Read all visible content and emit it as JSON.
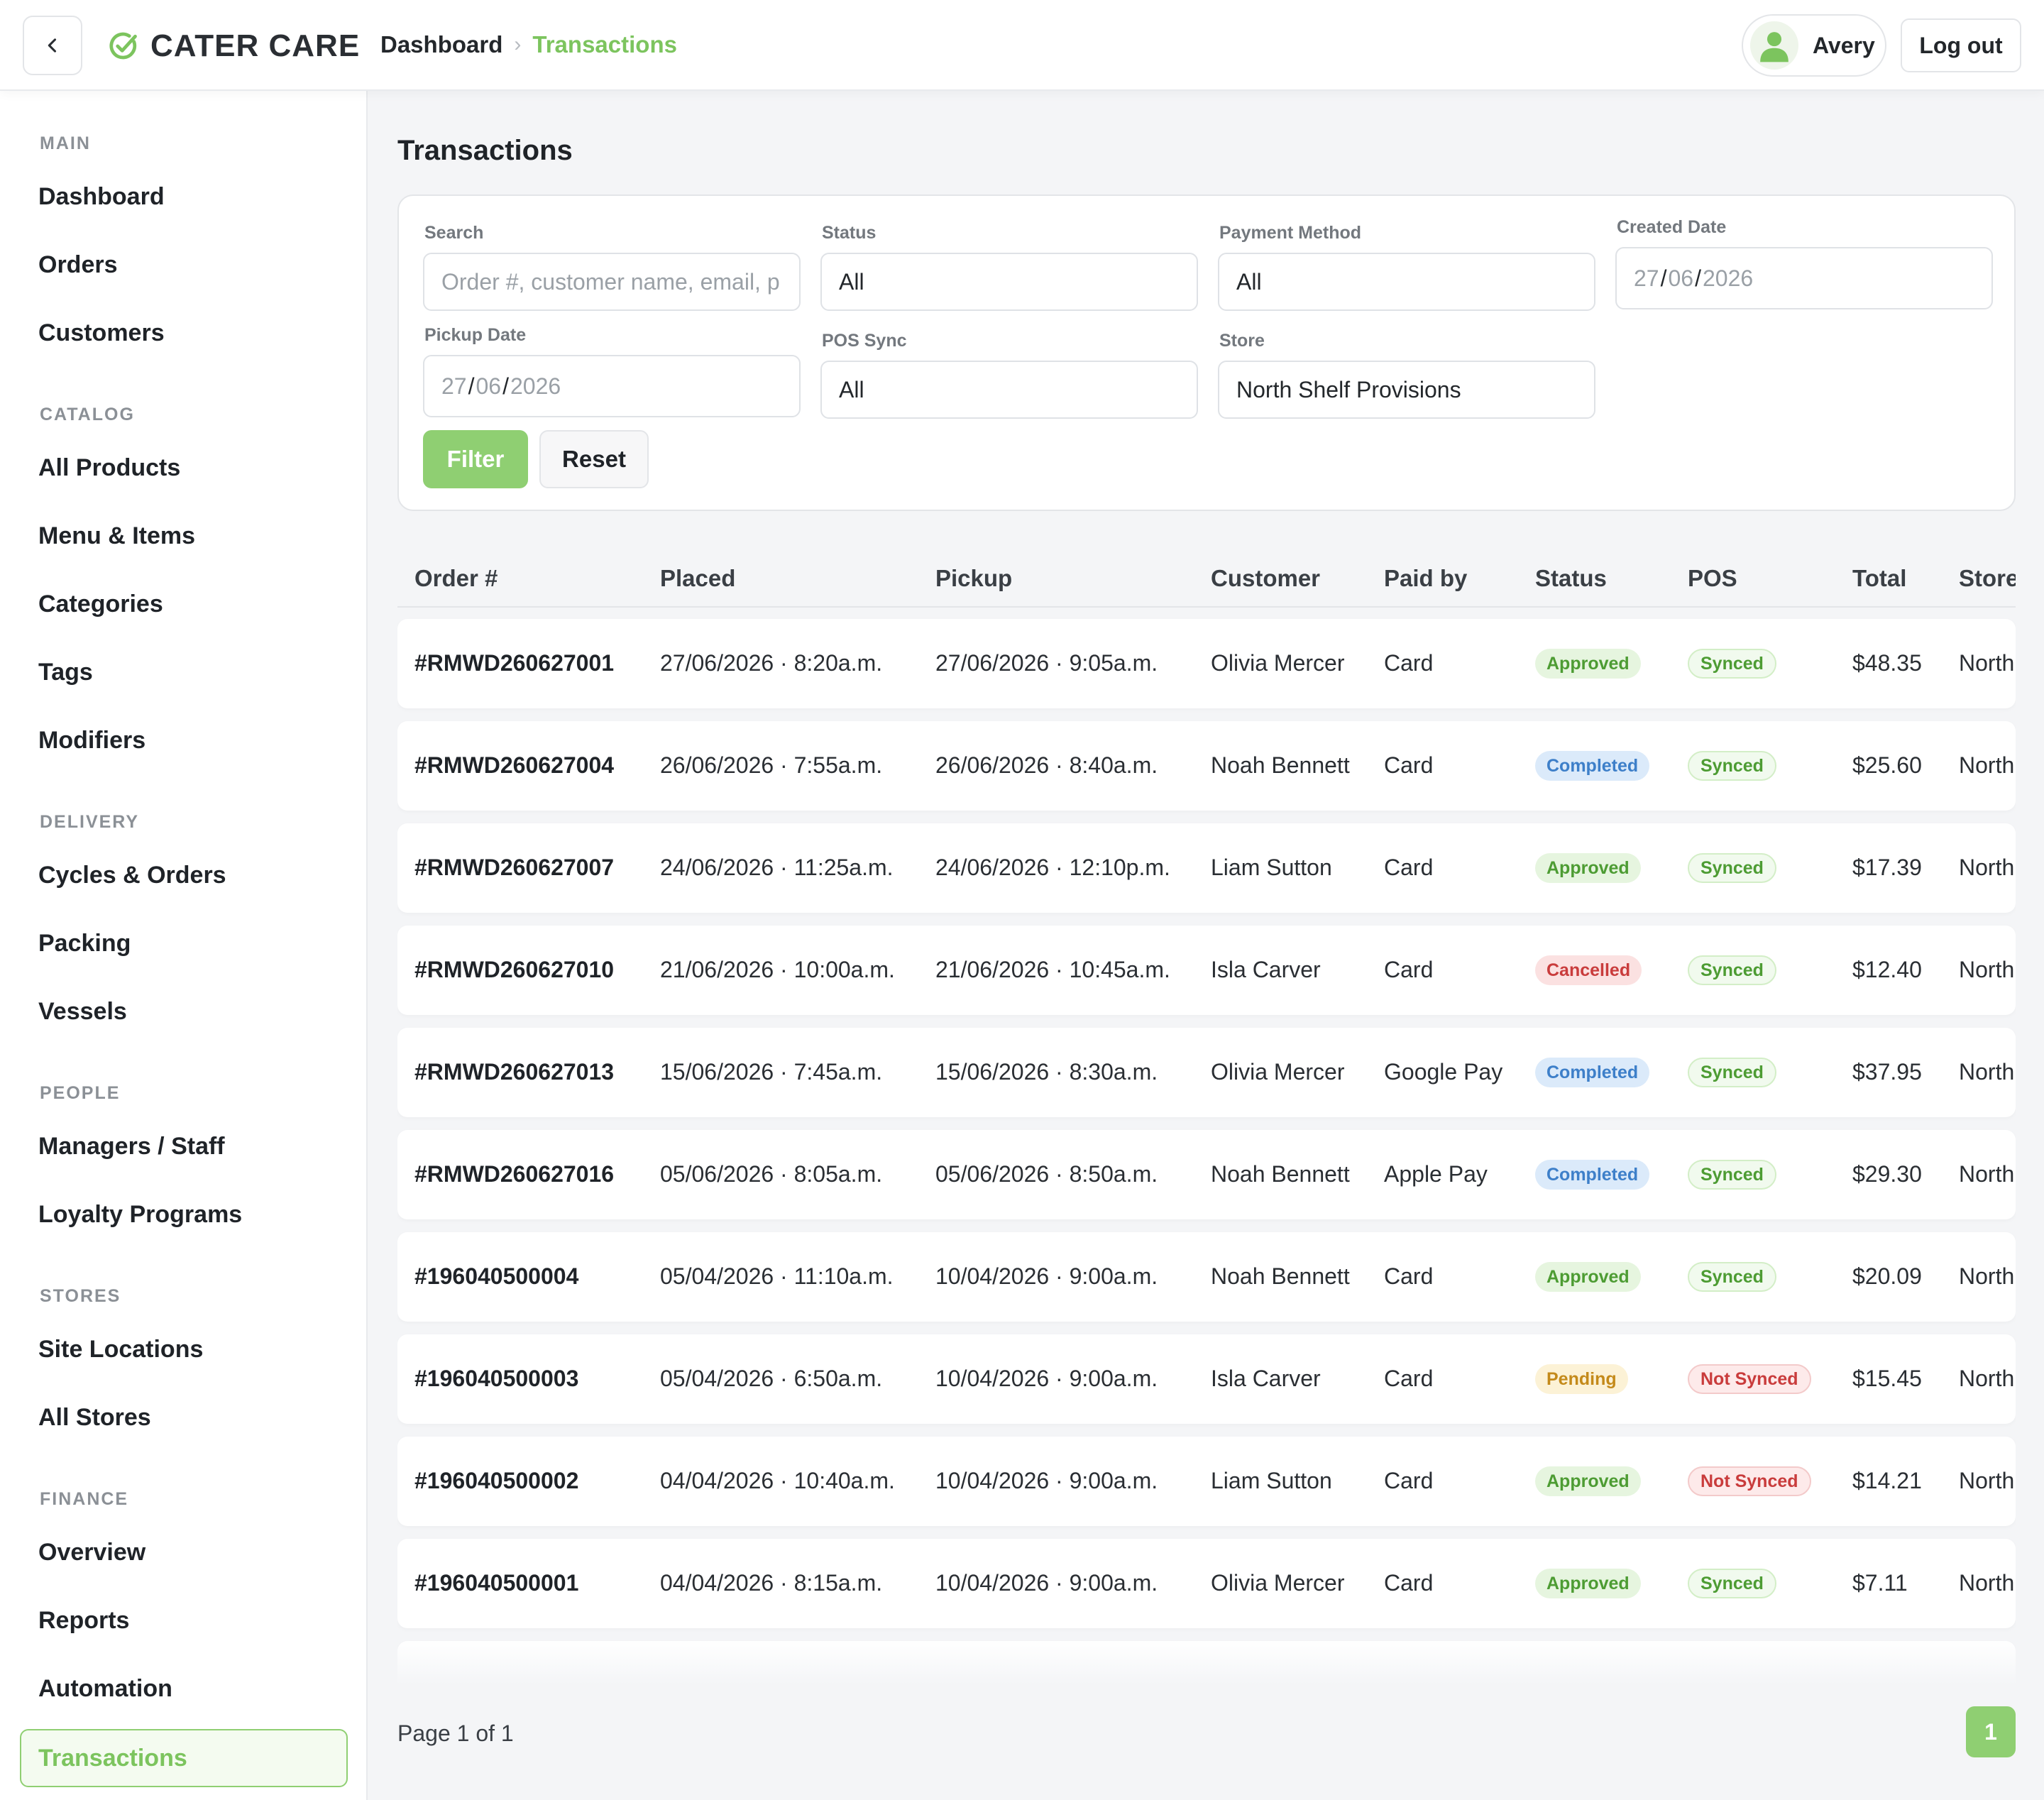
{
  "header": {
    "brand": "CATER CARE",
    "breadcrumb": [
      "Dashboard",
      "Transactions"
    ],
    "user_name": "Avery",
    "logout_label": "Log out"
  },
  "sidebar": {
    "sections": [
      {
        "title": "MAIN",
        "items": [
          "Dashboard",
          "Orders",
          "Customers"
        ]
      },
      {
        "title": "CATALOG",
        "items": [
          "All Products",
          "Menu & Items",
          "Categories",
          "Tags",
          "Modifiers"
        ]
      },
      {
        "title": "DELIVERY",
        "items": [
          "Cycles & Orders",
          "Packing",
          "Vessels"
        ]
      },
      {
        "title": "PEOPLE",
        "items": [
          "Managers / Staff",
          "Loyalty Programs"
        ]
      },
      {
        "title": "STORES",
        "items": [
          "Site Locations",
          "All Stores"
        ]
      },
      {
        "title": "FINANCE",
        "items": [
          "Overview",
          "Reports",
          "Automation",
          "Transactions"
        ]
      }
    ],
    "active_item": "Transactions"
  },
  "page": {
    "title": "Transactions"
  },
  "filters": {
    "search_label": "Search",
    "search_placeholder": "Order #, customer name, email, p",
    "status_label": "Status",
    "status_value": "All",
    "payment_label": "Payment Method",
    "payment_value": "All",
    "created_label": "Created Date",
    "created_value": {
      "day": "27",
      "month": "06",
      "year": "2026"
    },
    "pickup_label": "Pickup Date",
    "pickup_value": {
      "day": "27",
      "month": "06",
      "year": "2026"
    },
    "pos_label": "POS Sync",
    "pos_value": "All",
    "store_label": "Store",
    "store_value": "North Shelf Provisions",
    "filter_button": "Filter",
    "reset_button": "Reset"
  },
  "table": {
    "columns": [
      "Order #",
      "Placed",
      "Pickup",
      "Customer",
      "Paid by",
      "Status",
      "POS",
      "Total",
      "Store"
    ],
    "rows": [
      {
        "order": "#RMWD260627001",
        "placed": "27/06/2026 · 8:20a.m.",
        "pickup": "27/06/2026 · 9:05a.m.",
        "customer": "Olivia Mercer",
        "paid_by": "Card",
        "status": "Approved",
        "pos": "Synced",
        "total": "$48.35",
        "store": "North"
      },
      {
        "order": "#RMWD260627004",
        "placed": "26/06/2026 · 7:55a.m.",
        "pickup": "26/06/2026 · 8:40a.m.",
        "customer": "Noah Bennett",
        "paid_by": "Card",
        "status": "Completed",
        "pos": "Synced",
        "total": "$25.60",
        "store": "North"
      },
      {
        "order": "#RMWD260627007",
        "placed": "24/06/2026 · 11:25a.m.",
        "pickup": "24/06/2026 · 12:10p.m.",
        "customer": "Liam Sutton",
        "paid_by": "Card",
        "status": "Approved",
        "pos": "Synced",
        "total": "$17.39",
        "store": "North"
      },
      {
        "order": "#RMWD260627010",
        "placed": "21/06/2026 · 10:00a.m.",
        "pickup": "21/06/2026 · 10:45a.m.",
        "customer": "Isla Carver",
        "paid_by": "Card",
        "status": "Cancelled",
        "pos": "Synced",
        "total": "$12.40",
        "store": "North"
      },
      {
        "order": "#RMWD260627013",
        "placed": "15/06/2026 · 7:45a.m.",
        "pickup": "15/06/2026 · 8:30a.m.",
        "customer": "Olivia Mercer",
        "paid_by": "Google Pay",
        "status": "Completed",
        "pos": "Synced",
        "total": "$37.95",
        "store": "North"
      },
      {
        "order": "#RMWD260627016",
        "placed": "05/06/2026 · 8:05a.m.",
        "pickup": "05/06/2026 · 8:50a.m.",
        "customer": "Noah Bennett",
        "paid_by": "Apple Pay",
        "status": "Completed",
        "pos": "Synced",
        "total": "$29.30",
        "store": "North"
      },
      {
        "order": "#196040500004",
        "placed": "05/04/2026 · 11:10a.m.",
        "pickup": "10/04/2026 · 9:00a.m.",
        "customer": "Noah Bennett",
        "paid_by": "Card",
        "status": "Approved",
        "pos": "Synced",
        "total": "$20.09",
        "store": "North"
      },
      {
        "order": "#196040500003",
        "placed": "05/04/2026 · 6:50a.m.",
        "pickup": "10/04/2026 · 9:00a.m.",
        "customer": "Isla Carver",
        "paid_by": "Card",
        "status": "Pending",
        "pos": "Not Synced",
        "total": "$15.45",
        "store": "North"
      },
      {
        "order": "#196040500002",
        "placed": "04/04/2026 · 10:40a.m.",
        "pickup": "10/04/2026 · 9:00a.m.",
        "customer": "Liam Sutton",
        "paid_by": "Card",
        "status": "Approved",
        "pos": "Not Synced",
        "total": "$14.21",
        "store": "North"
      },
      {
        "order": "#196040500001",
        "placed": "04/04/2026 · 8:15a.m.",
        "pickup": "10/04/2026 · 9:00a.m.",
        "customer": "Olivia Mercer",
        "paid_by": "Card",
        "status": "Approved",
        "pos": "Synced",
        "total": "$7.11",
        "store": "North"
      }
    ]
  },
  "pagination": {
    "label": "Page 1 of 1",
    "current": "1"
  },
  "colors": {
    "accent": "#8fcf72",
    "accent_text": "#7cc45e"
  }
}
